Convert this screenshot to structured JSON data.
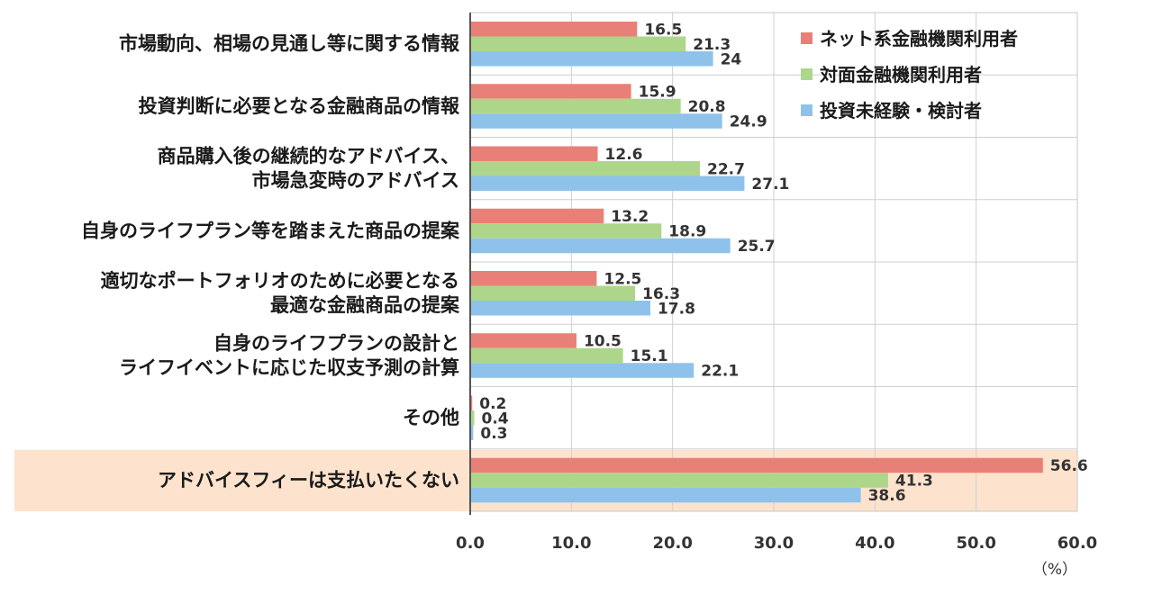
{
  "chart_data": {
    "type": "bar",
    "orientation": "horizontal",
    "categories": [
      [
        "市場動向、相場の見通し等に関する情報"
      ],
      [
        "投資判断に必要となる金融商品の情報"
      ],
      [
        "商品購入後の継続的なアドバイス、",
        "市場急変時のアドバイス"
      ],
      [
        "自身のライフプラン等を踏まえた商品の提案"
      ],
      [
        "適切なポートフォリオのために必要となる",
        "最適な金融商品の提案"
      ],
      [
        "自身のライフプランの設計と",
        "ライフイベントに応じた収支予測の計算"
      ],
      [
        "その他"
      ],
      [
        "アドバイスフィーは支払いたくない"
      ]
    ],
    "series": [
      {
        "name": "ネット系金融機関利用者",
        "color": "#e98077",
        "values": [
          16.5,
          15.9,
          12.6,
          13.2,
          12.5,
          10.5,
          0.2,
          56.6
        ],
        "labels": [
          "16.5",
          "15.9",
          "12.6",
          "13.2",
          "12.5",
          "10.5",
          "0.2",
          "56.6"
        ]
      },
      {
        "name": "対面金融機関利用者",
        "color": "#aed68a",
        "values": [
          21.3,
          20.8,
          22.7,
          18.9,
          16.3,
          15.1,
          0.4,
          41.3
        ],
        "labels": [
          "21.3",
          "20.8",
          "22.7",
          "18.9",
          "16.3",
          "15.1",
          "0.4",
          "41.3"
        ]
      },
      {
        "name": "投資未経験・検討者",
        "color": "#8ec2ea",
        "values": [
          24,
          24.9,
          27.1,
          25.7,
          17.8,
          22.1,
          0.3,
          38.6
        ],
        "labels": [
          "24",
          "24.9",
          "27.1",
          "25.7",
          "17.8",
          "22.1",
          "0.3",
          "38.6"
        ]
      }
    ],
    "xlim": [
      0,
      60
    ],
    "xticks": [
      "0.0",
      "10.0",
      "20.0",
      "30.0",
      "40.0",
      "50.0",
      "60.0"
    ],
    "unit_label": "（%）",
    "highlighted_category_index": 7,
    "highlight_color": "#fde3cd",
    "grid": true,
    "legend_position": "top-right"
  }
}
